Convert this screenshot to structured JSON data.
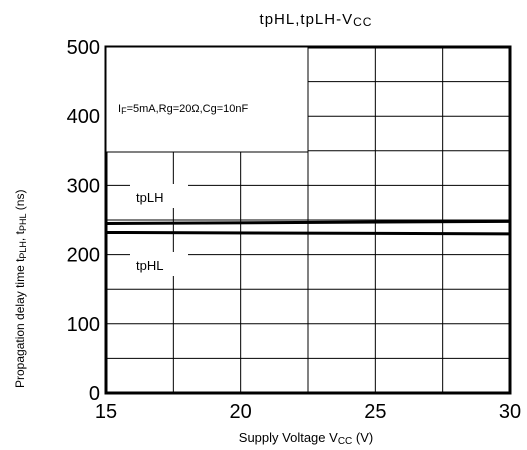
{
  "chart_data": {
    "type": "line",
    "title": "tpHL,tpLH-VCC",
    "xlabel": "Supply Voltage VCC (V)",
    "ylabel": "Propagation delay time tPLH, tPHL (ns)",
    "xlim": [
      15,
      30
    ],
    "ylim": [
      0,
      500
    ],
    "x_ticks": [
      "15",
      "20",
      "25",
      "30"
    ],
    "y_ticks": [
      "0",
      "100",
      "200",
      "300",
      "400",
      "500"
    ],
    "grid": true,
    "annotation": "IF=5mA,Rg=20Ω,Cg=10nF",
    "series": [
      {
        "name": "tpLH",
        "x": [
          15,
          30
        ],
        "values": [
          245,
          248
        ]
      },
      {
        "name": "tpHL",
        "x": [
          15,
          30
        ],
        "values": [
          232,
          230
        ]
      }
    ]
  }
}
